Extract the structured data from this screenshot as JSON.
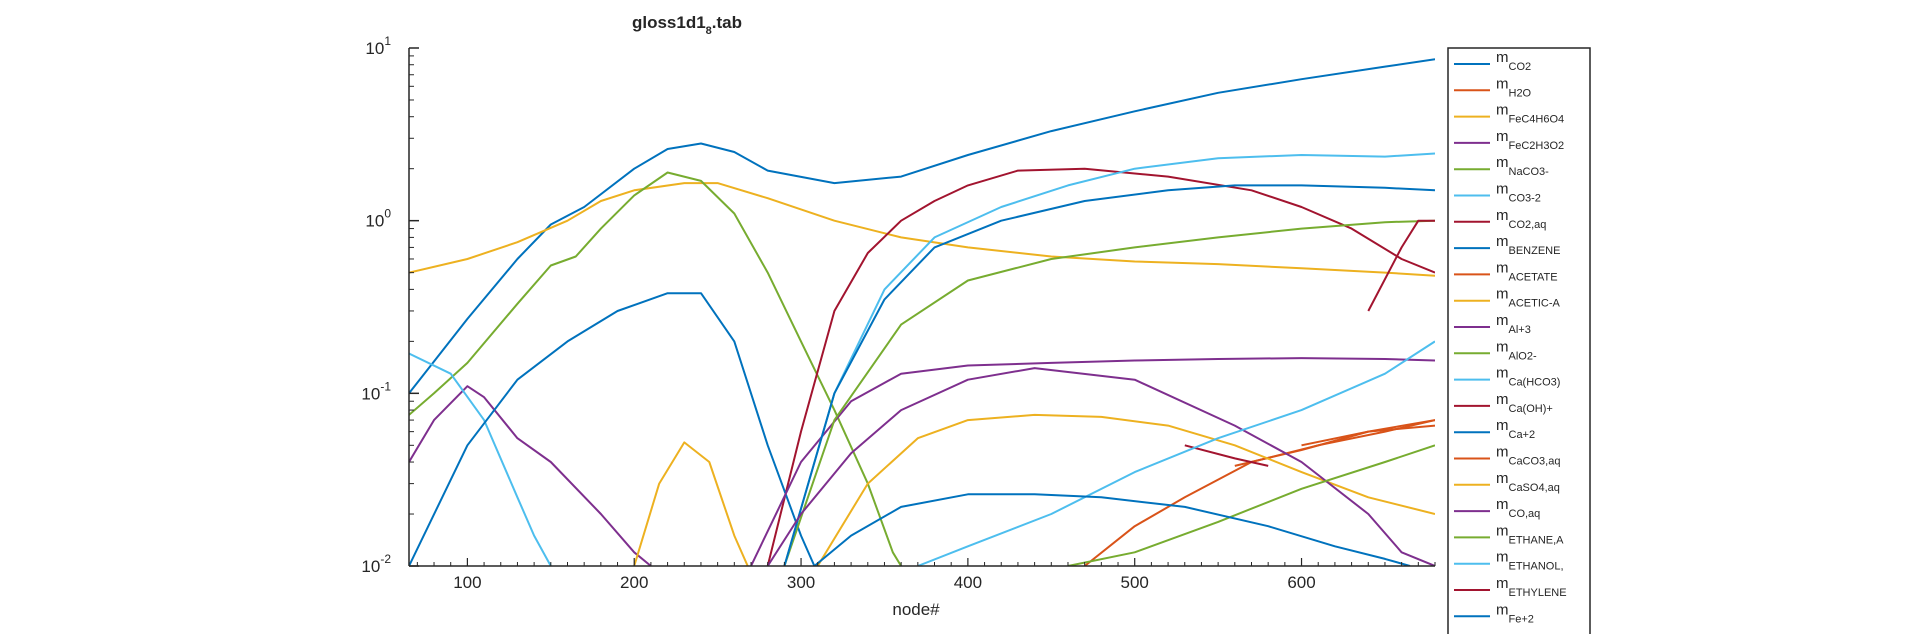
{
  "chart_data": {
    "type": "line",
    "title": "gloss1d1",
    "title_sub": "8",
    "title_ext": ".tab",
    "xlabel": "node#",
    "ylabel": "",
    "y_scale": "log",
    "xlim": [
      65,
      680
    ],
    "ylim": [
      0.01,
      10
    ],
    "x_ticks": [
      100,
      200,
      300,
      400,
      500,
      600
    ],
    "x_tick_labels": [
      "100",
      "200",
      "300",
      "400",
      "500",
      "600"
    ],
    "y_ticks": [
      0.01,
      0.1,
      1,
      10
    ],
    "y_tick_base": [
      "10",
      "10",
      "10",
      "10"
    ],
    "y_tick_exp": [
      "-2",
      "-1",
      "0",
      "1"
    ],
    "legend_position": "right-outside",
    "series": [
      {
        "name": "CO2",
        "color": "#0072BD",
        "points": [
          [
            65,
            0.1
          ],
          [
            100,
            0.27
          ],
          [
            130,
            0.6
          ],
          [
            150,
            0.95
          ],
          [
            170,
            1.2
          ],
          [
            200,
            2.0
          ],
          [
            220,
            2.6
          ],
          [
            240,
            2.8
          ],
          [
            260,
            2.5
          ],
          [
            280,
            1.95
          ],
          [
            320,
            1.65
          ],
          [
            360,
            1.8
          ],
          [
            400,
            2.4
          ],
          [
            450,
            3.3
          ],
          [
            500,
            4.3
          ],
          [
            550,
            5.5
          ],
          [
            600,
            6.6
          ],
          [
            650,
            7.8
          ],
          [
            680,
            8.6
          ]
        ]
      },
      {
        "name": "H2O",
        "color": "#D95319",
        "points": [
          [
            560,
            0.038
          ],
          [
            600,
            0.047
          ],
          [
            640,
            0.06
          ],
          [
            680,
            0.07
          ]
        ]
      },
      {
        "name": "FeC4H6O4",
        "color": "#EDB120",
        "points": [
          [
            65,
            0.5
          ],
          [
            100,
            0.6
          ],
          [
            130,
            0.75
          ],
          [
            160,
            1.0
          ],
          [
            180,
            1.3
          ],
          [
            200,
            1.5
          ],
          [
            230,
            1.65
          ],
          [
            250,
            1.65
          ],
          [
            280,
            1.35
          ],
          [
            320,
            1.0
          ],
          [
            360,
            0.8
          ],
          [
            400,
            0.7
          ],
          [
            450,
            0.62
          ],
          [
            500,
            0.58
          ],
          [
            550,
            0.56
          ],
          [
            600,
            0.53
          ],
          [
            650,
            0.5
          ],
          [
            680,
            0.48
          ]
        ]
      },
      {
        "name": "FeC2H3O2",
        "color": "#7E2F8E",
        "points": [
          [
            65,
            0.04
          ],
          [
            80,
            0.07
          ],
          [
            100,
            0.11
          ],
          [
            110,
            0.095
          ],
          [
            130,
            0.055
          ],
          [
            150,
            0.04
          ],
          [
            180,
            0.02
          ],
          [
            200,
            0.012
          ],
          [
            210,
            0.01
          ]
        ]
      },
      {
        "name": "NaCO3-",
        "color": "#77AC30",
        "points": [
          [
            65,
            0.075
          ],
          [
            80,
            0.1
          ],
          [
            100,
            0.15
          ],
          [
            130,
            0.33
          ],
          [
            150,
            0.55
          ],
          [
            165,
            0.62
          ],
          [
            180,
            0.9
          ],
          [
            200,
            1.4
          ],
          [
            220,
            1.9
          ],
          [
            240,
            1.7
          ],
          [
            260,
            1.1
          ],
          [
            280,
            0.5
          ],
          [
            300,
            0.2
          ],
          [
            320,
            0.08
          ],
          [
            340,
            0.03
          ],
          [
            355,
            0.012
          ],
          [
            360,
            0.01
          ]
        ]
      },
      {
        "name": "CO3-2",
        "color": "#4DBEEE",
        "points": [
          [
            65,
            0.17
          ],
          [
            90,
            0.13
          ],
          [
            110,
            0.07
          ],
          [
            130,
            0.025
          ],
          [
            140,
            0.015
          ],
          [
            150,
            0.01
          ]
        ]
      },
      {
        "name": "CO2,aq",
        "color": "#A2142F",
        "points": [
          [
            280,
            0.01
          ],
          [
            300,
            0.06
          ],
          [
            320,
            0.3
          ],
          [
            340,
            0.65
          ],
          [
            360,
            1.0
          ],
          [
            380,
            1.3
          ],
          [
            400,
            1.6
          ],
          [
            430,
            1.95
          ],
          [
            470,
            2.0
          ],
          [
            520,
            1.8
          ],
          [
            570,
            1.5
          ],
          [
            600,
            1.2
          ],
          [
            630,
            0.9
          ],
          [
            660,
            0.6
          ],
          [
            680,
            0.5
          ]
        ]
      },
      {
        "name": "BENZENE",
        "color": "#0072BD",
        "points": [
          [
            65,
            0.01
          ],
          [
            100,
            0.05
          ],
          [
            130,
            0.12
          ],
          [
            160,
            0.2
          ],
          [
            190,
            0.3
          ],
          [
            220,
            0.38
          ],
          [
            240,
            0.38
          ],
          [
            260,
            0.2
          ],
          [
            280,
            0.05
          ],
          [
            300,
            0.015
          ],
          [
            308,
            0.01
          ]
        ]
      },
      {
        "name": "ACETATE",
        "color": "#D95319",
        "points": [
          [
            470,
            0.01
          ],
          [
            500,
            0.017
          ],
          [
            530,
            0.025
          ],
          [
            570,
            0.04
          ],
          [
            610,
            0.05
          ],
          [
            650,
            0.06
          ],
          [
            680,
            0.07
          ]
        ]
      },
      {
        "name": "ACETIC-A",
        "color": "#EDB120",
        "points": [
          [
            200,
            0.01
          ],
          [
            215,
            0.03
          ],
          [
            230,
            0.052
          ],
          [
            245,
            0.04
          ],
          [
            260,
            0.015
          ],
          [
            268,
            0.01
          ]
        ]
      },
      {
        "name": "Al+3",
        "color": "#7E2F8E",
        "points": [
          [
            270,
            0.01
          ],
          [
            300,
            0.04
          ],
          [
            330,
            0.09
          ],
          [
            360,
            0.13
          ],
          [
            400,
            0.145
          ],
          [
            450,
            0.15
          ],
          [
            500,
            0.155
          ],
          [
            550,
            0.158
          ],
          [
            600,
            0.16
          ],
          [
            650,
            0.158
          ],
          [
            680,
            0.155
          ]
        ]
      },
      {
        "name": "AlO2-",
        "color": "#77AC30",
        "points": [
          [
            290,
            0.01
          ],
          [
            320,
            0.07
          ],
          [
            360,
            0.25
          ],
          [
            400,
            0.45
          ],
          [
            450,
            0.6
          ],
          [
            500,
            0.7
          ],
          [
            550,
            0.8
          ],
          [
            600,
            0.9
          ],
          [
            650,
            0.98
          ],
          [
            680,
            1.0
          ]
        ]
      },
      {
        "name": "Ca(HCO3)",
        "color": "#4DBEEE",
        "points": [
          [
            290,
            0.01
          ],
          [
            320,
            0.1
          ],
          [
            350,
            0.4
          ],
          [
            380,
            0.8
          ],
          [
            420,
            1.2
          ],
          [
            460,
            1.6
          ],
          [
            500,
            2.0
          ],
          [
            550,
            2.3
          ],
          [
            600,
            2.4
          ],
          [
            650,
            2.35
          ],
          [
            680,
            2.45
          ]
        ]
      },
      {
        "name": "Ca(OH)+",
        "color": "#A2142F",
        "points": [
          [
            530,
            0.05
          ],
          [
            560,
            0.042
          ],
          [
            580,
            0.038
          ]
        ]
      },
      {
        "name": "Ca+2",
        "color": "#0072BD",
        "points": [
          [
            290,
            0.01
          ],
          [
            320,
            0.1
          ],
          [
            350,
            0.35
          ],
          [
            380,
            0.7
          ],
          [
            420,
            1.0
          ],
          [
            470,
            1.3
          ],
          [
            520,
            1.5
          ],
          [
            560,
            1.6
          ],
          [
            600,
            1.6
          ],
          [
            650,
            1.55
          ],
          [
            680,
            1.5
          ]
        ]
      },
      {
        "name": "CaCO3,aq",
        "color": "#D95319",
        "points": [
          [
            600,
            0.05
          ],
          [
            640,
            0.06
          ],
          [
            680,
            0.065
          ]
        ]
      },
      {
        "name": "CaSO4,aq",
        "color": "#EDB120",
        "points": [
          [
            310,
            0.01
          ],
          [
            340,
            0.03
          ],
          [
            370,
            0.055
          ],
          [
            400,
            0.07
          ],
          [
            440,
            0.075
          ],
          [
            480,
            0.073
          ],
          [
            520,
            0.065
          ],
          [
            560,
            0.05
          ],
          [
            600,
            0.035
          ],
          [
            640,
            0.025
          ],
          [
            680,
            0.02
          ]
        ]
      },
      {
        "name": "CO,aq",
        "color": "#7E2F8E",
        "points": [
          [
            280,
            0.01
          ],
          [
            300,
            0.02
          ],
          [
            330,
            0.045
          ],
          [
            360,
            0.08
          ],
          [
            400,
            0.12
          ],
          [
            440,
            0.14
          ],
          [
            500,
            0.12
          ],
          [
            560,
            0.065
          ],
          [
            600,
            0.04
          ],
          [
            640,
            0.02
          ],
          [
            660,
            0.012
          ],
          [
            680,
            0.01
          ]
        ]
      },
      {
        "name": "ETHANE,A",
        "color": "#77AC30",
        "points": [
          [
            460,
            0.01
          ],
          [
            500,
            0.012
          ],
          [
            550,
            0.018
          ],
          [
            600,
            0.028
          ],
          [
            650,
            0.04
          ],
          [
            680,
            0.05
          ]
        ]
      },
      {
        "name": "ETHANOL,",
        "color": "#4DBEEE",
        "points": [
          [
            370,
            0.01
          ],
          [
            400,
            0.013
          ],
          [
            450,
            0.02
          ],
          [
            500,
            0.035
          ],
          [
            550,
            0.055
          ],
          [
            600,
            0.08
          ],
          [
            650,
            0.13
          ],
          [
            680,
            0.2
          ]
        ]
      },
      {
        "name": "ETHYLENE",
        "color": "#A2142F",
        "points": [
          [
            640,
            0.3
          ],
          [
            660,
            0.7
          ],
          [
            670,
            1.0
          ],
          [
            680,
            1.0
          ]
        ]
      },
      {
        "name": "Fe+2",
        "color": "#0072BD",
        "points": [
          [
            308,
            0.01
          ],
          [
            330,
            0.015
          ],
          [
            360,
            0.022
          ],
          [
            400,
            0.026
          ],
          [
            440,
            0.026
          ],
          [
            480,
            0.025
          ],
          [
            530,
            0.022
          ],
          [
            580,
            0.017
          ],
          [
            620,
            0.013
          ],
          [
            650,
            0.011
          ],
          [
            665,
            0.01
          ]
        ]
      }
    ]
  }
}
